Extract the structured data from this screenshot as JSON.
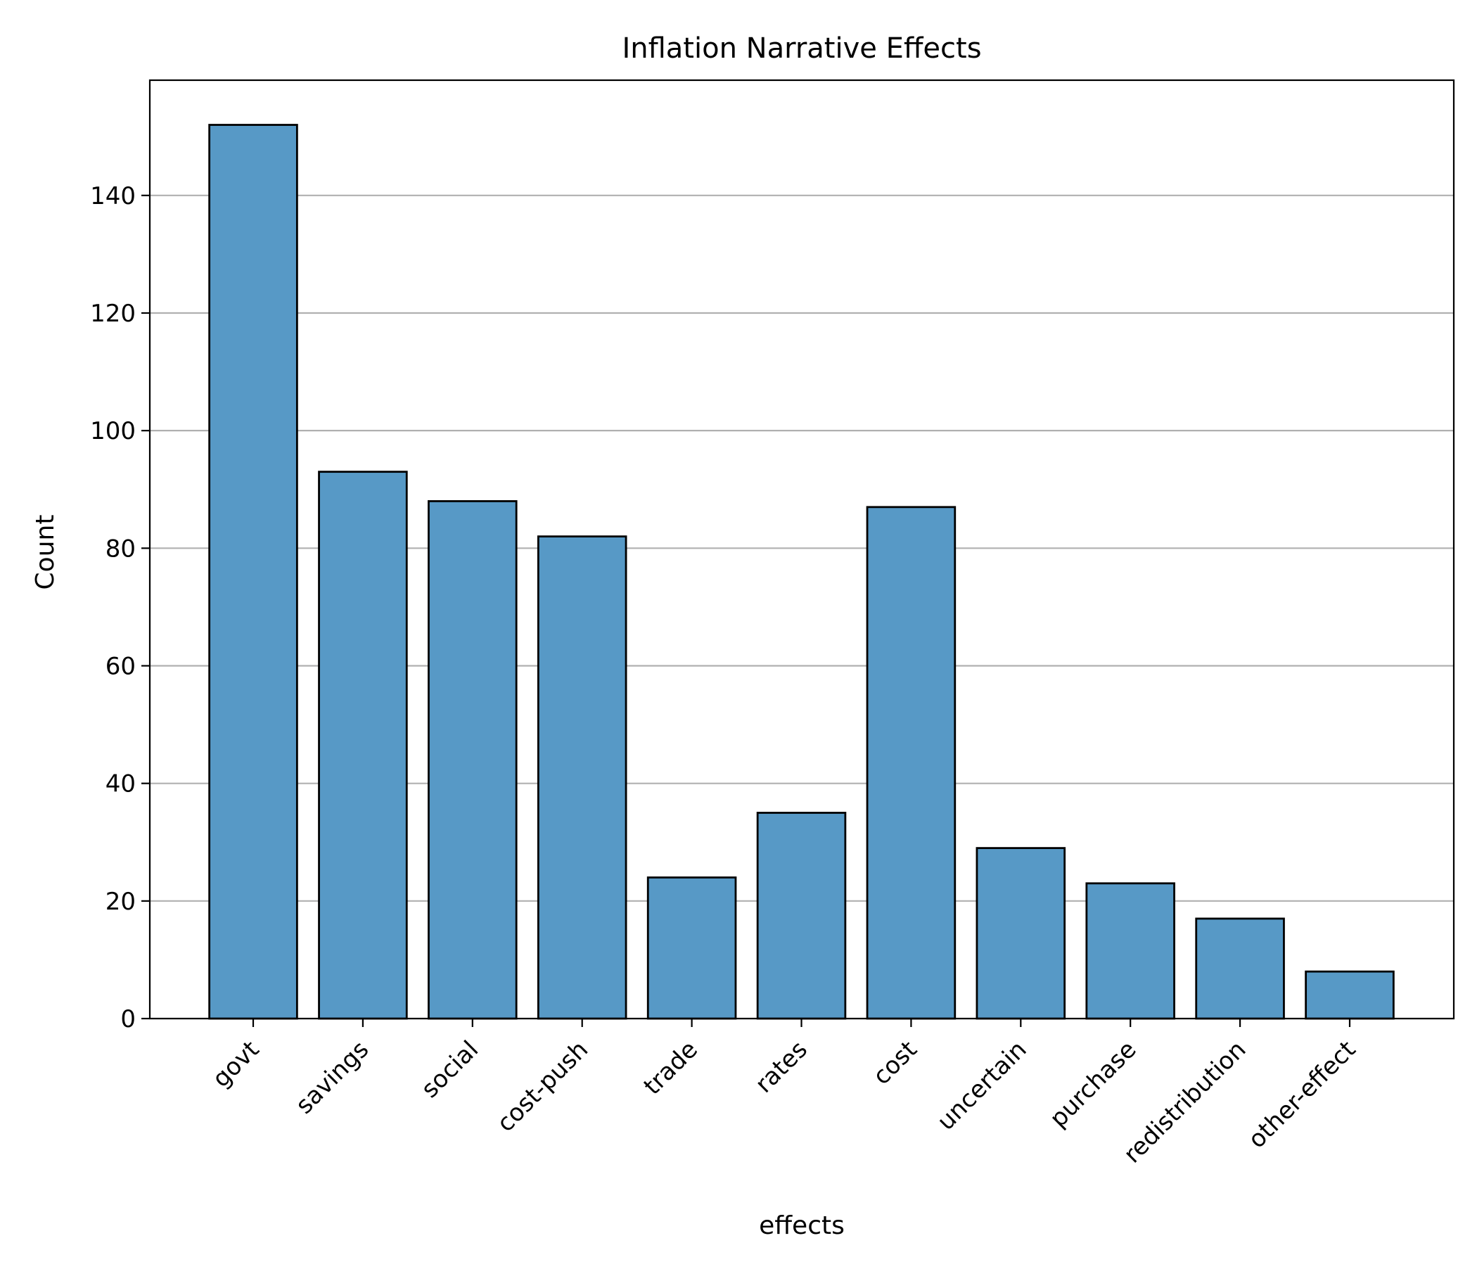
{
  "chart_data": {
    "type": "bar",
    "title": "Inflation Narrative Effects",
    "xlabel": "effects",
    "ylabel": "Count",
    "categories": [
      "govt",
      "savings",
      "social",
      "cost-push",
      "trade",
      "rates",
      "cost",
      "uncertain",
      "purchase",
      "redistribution",
      "other-effect"
    ],
    "values": [
      152,
      93,
      88,
      82,
      24,
      35,
      87,
      29,
      23,
      17,
      8
    ],
    "ylim": [
      0,
      159.6
    ],
    "yticks": [
      0,
      20,
      40,
      60,
      80,
      100,
      120,
      140
    ],
    "grid": "y-major",
    "legend": "none",
    "colors": {
      "bar_fill": "#5799c6",
      "bar_edge": "#000000",
      "grid": "#b0b0b0",
      "axis": "#000000"
    }
  }
}
